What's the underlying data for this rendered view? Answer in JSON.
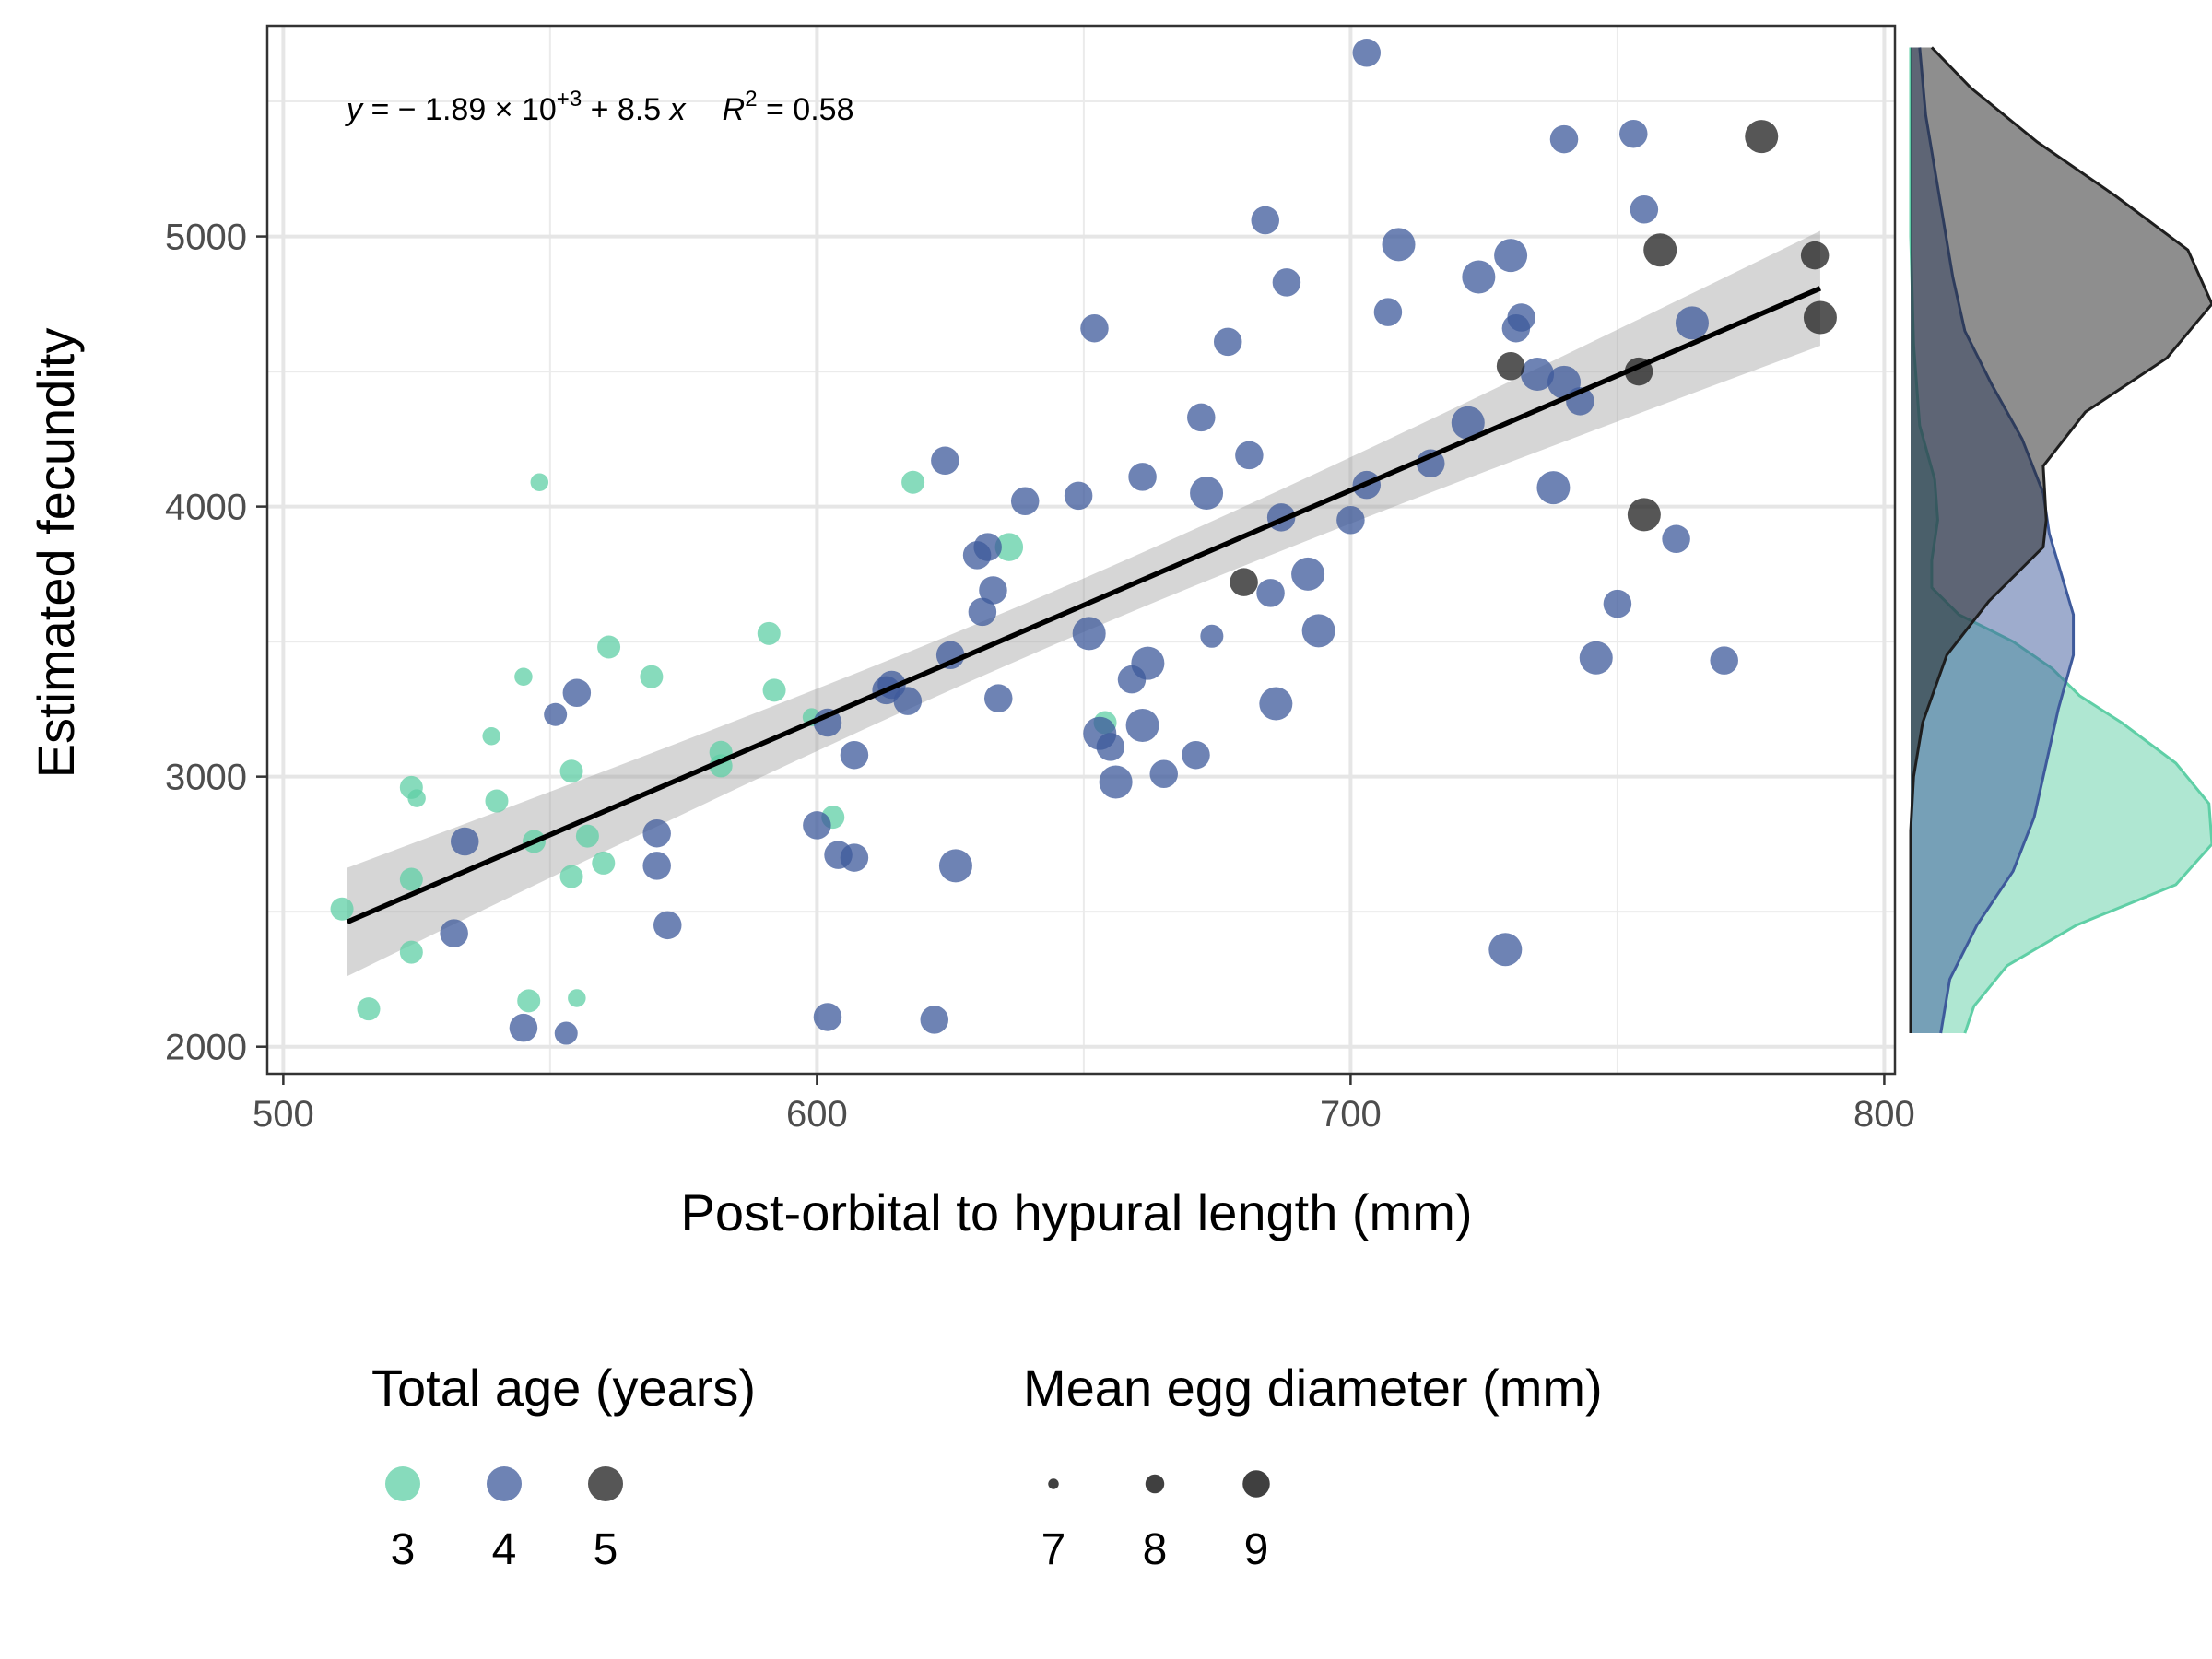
{
  "chart_data": {
    "type": "scatter",
    "xlabel": "Post-orbital to hypural length (mm)",
    "ylabel": "Estimated fecundity",
    "xlim": [
      497,
      802
    ],
    "ylim": [
      1900,
      5780
    ],
    "xticks": [
      500,
      600,
      700,
      800
    ],
    "yticks": [
      2000,
      3000,
      4000,
      5000
    ],
    "grid": true,
    "regression": {
      "intercept": -1890,
      "slope": 8.5,
      "r2": 0.58,
      "x_range": [
        512,
        788
      ],
      "equation_label": {
        "y": "y",
        "eq": " = − 1.89 × 10",
        "exp": "+3",
        "rest": " + 8.5 ",
        "x": "x",
        "r": "R",
        "r_exp": "2",
        "r_val": " = 0.58"
      }
    },
    "color_legend": {
      "title": "Total age (years)",
      "entries": [
        {
          "label": "3",
          "color": "#5fcfa6"
        },
        {
          "label": "4",
          "color": "#3e5a9b"
        },
        {
          "label": "5",
          "color": "#1e1e1e"
        }
      ]
    },
    "size_legend": {
      "title": "Mean egg diameter (mm)",
      "entries": [
        {
          "label": "7",
          "value": 7
        },
        {
          "label": "8",
          "value": 8
        },
        {
          "label": "9",
          "value": 9
        }
      ]
    },
    "series": [
      {
        "name": "3",
        "color": "#5fcfa6",
        "points": [
          [
            511,
            2510,
            8
          ],
          [
            516,
            2140,
            8
          ],
          [
            524,
            2960,
            8
          ],
          [
            525,
            2920,
            7.5
          ],
          [
            524,
            2620,
            8
          ],
          [
            524,
            2350,
            8
          ],
          [
            539,
            3150,
            7.5
          ],
          [
            540,
            2910,
            8
          ],
          [
            545,
            3370,
            7.5
          ],
          [
            546,
            2170,
            8
          ],
          [
            547,
            2760,
            8
          ],
          [
            548,
            4090,
            7.5
          ],
          [
            554,
            3020,
            8
          ],
          [
            554,
            2630,
            8
          ],
          [
            555,
            2180,
            7.5
          ],
          [
            557,
            2780,
            8
          ],
          [
            560,
            2680,
            8
          ],
          [
            561,
            3480,
            8
          ],
          [
            569,
            3370,
            8
          ],
          [
            582,
            3090,
            8
          ],
          [
            582,
            3040,
            8
          ],
          [
            591,
            3530,
            8
          ],
          [
            592,
            3320,
            8
          ],
          [
            599,
            3220,
            7.5
          ],
          [
            603,
            2850,
            8
          ],
          [
            618,
            4090,
            8
          ],
          [
            636,
            3850,
            8.5
          ],
          [
            654,
            3200,
            8
          ]
        ]
      },
      {
        "name": "4",
        "color": "#3e5a9b",
        "points": [
          [
            532,
            2420,
            8.5
          ],
          [
            534,
            2760,
            8.5
          ],
          [
            545,
            2070,
            8.5
          ],
          [
            551,
            3230,
            8
          ],
          [
            553,
            2050,
            8
          ],
          [
            555,
            3310,
            8.5
          ],
          [
            570,
            2790,
            8.5
          ],
          [
            570,
            2670,
            8.5
          ],
          [
            572,
            2450,
            8.5
          ],
          [
            600,
            2820,
            8.5
          ],
          [
            602,
            2110,
            8.5
          ],
          [
            602,
            3200,
            8.5
          ],
          [
            604,
            2710,
            8.5
          ],
          [
            607,
            2700,
            8.5
          ],
          [
            607,
            3080,
            8.5
          ],
          [
            613,
            3320,
            8.5
          ],
          [
            614,
            3340,
            8.5
          ],
          [
            617,
            3280,
            8.5
          ],
          [
            622,
            2100,
            8.5
          ],
          [
            624,
            4170,
            8.5
          ],
          [
            625,
            3450,
            8.5
          ],
          [
            626,
            2670,
            9
          ],
          [
            630,
            3820,
            8.5
          ],
          [
            631,
            3610,
            8.5
          ],
          [
            632,
            3850,
            8.5
          ],
          [
            633,
            3690,
            8.5
          ],
          [
            634,
            3290,
            8.5
          ],
          [
            639,
            4020,
            8.5
          ],
          [
            649,
            4040,
            8.5
          ],
          [
            651,
            3530,
            9
          ],
          [
            652,
            4660,
            8.5
          ],
          [
            653,
            3160,
            9
          ],
          [
            655,
            3110,
            8.5
          ],
          [
            656,
            2980,
            9
          ],
          [
            659,
            3360,
            8.5
          ],
          [
            661,
            3190,
            9
          ],
          [
            661,
            4110,
            8.5
          ],
          [
            662,
            3420,
            9
          ],
          [
            665,
            3010,
            8.5
          ],
          [
            671,
            3080,
            8.5
          ],
          [
            672,
            4330,
            8.5
          ],
          [
            673,
            4050,
            9
          ],
          [
            674,
            3520,
            8
          ],
          [
            677,
            4610,
            8.5
          ],
          [
            681,
            4190,
            8.5
          ],
          [
            684,
            5060,
            8.5
          ],
          [
            685,
            3680,
            8.5
          ],
          [
            686,
            3270,
            9
          ],
          [
            687,
            3960,
            8.5
          ],
          [
            688,
            4830,
            8.5
          ],
          [
            692,
            3750,
            9
          ],
          [
            694,
            3540,
            9
          ],
          [
            700,
            3950,
            8.5
          ],
          [
            703,
            5680,
            8.5
          ],
          [
            703,
            4080,
            8.5
          ],
          [
            707,
            4720,
            8.5
          ],
          [
            709,
            4970,
            9
          ],
          [
            715,
            4160,
            8.5
          ],
          [
            722,
            4310,
            9
          ],
          [
            724,
            4850,
            9
          ],
          [
            729,
            2360,
            9
          ],
          [
            730,
            4930,
            9
          ],
          [
            731,
            4660,
            8.5
          ],
          [
            732,
            4700,
            8.5
          ],
          [
            735,
            4490,
            9
          ],
          [
            738,
            4070,
            9
          ],
          [
            740,
            5360,
            8.5
          ],
          [
            740,
            4460,
            9
          ],
          [
            743,
            4390,
            8.5
          ],
          [
            746,
            3440,
            9
          ],
          [
            750,
            3640,
            8.5
          ],
          [
            753,
            5380,
            8.5
          ],
          [
            755,
            5100,
            8.5
          ],
          [
            761,
            3880,
            8.5
          ],
          [
            764,
            4680,
            9
          ],
          [
            770,
            3430,
            8.5
          ]
        ]
      },
      {
        "name": "5",
        "color": "#1e1e1e",
        "points": [
          [
            680,
            3720,
            8.5
          ],
          [
            730,
            4520,
            8.5
          ],
          [
            754,
            4500,
            8.5
          ],
          [
            755,
            3970,
            9
          ],
          [
            758,
            4950,
            9
          ],
          [
            777,
            5370,
            9
          ],
          [
            787,
            4930,
            8.5
          ],
          [
            788,
            4700,
            9
          ]
        ]
      }
    ],
    "marginal_density": {
      "axis": "y",
      "curves": [
        {
          "name": "3",
          "color": "#5fcfa6",
          "points": [
            [
              2050,
              0.18
            ],
            [
              2150,
              0.21
            ],
            [
              2300,
              0.32
            ],
            [
              2450,
              0.55
            ],
            [
              2600,
              0.88
            ],
            [
              2750,
              1.0
            ],
            [
              2900,
              0.99
            ],
            [
              3050,
              0.88
            ],
            [
              3200,
              0.7
            ],
            [
              3300,
              0.56
            ],
            [
              3400,
              0.47
            ],
            [
              3500,
              0.34
            ],
            [
              3600,
              0.16
            ],
            [
              3700,
              0.07
            ],
            [
              3800,
              0.07
            ],
            [
              3950,
              0.09
            ],
            [
              4100,
              0.08
            ],
            [
              4300,
              0.03
            ],
            [
              4600,
              0.01
            ],
            [
              5000,
              0.0
            ],
            [
              5700,
              0.0
            ]
          ]
        },
        {
          "name": "4",
          "color": "#3e5a9b",
          "points": [
            [
              2050,
              0.1
            ],
            [
              2250,
              0.13
            ],
            [
              2450,
              0.22
            ],
            [
              2650,
              0.34
            ],
            [
              2850,
              0.41
            ],
            [
              3050,
              0.45
            ],
            [
              3250,
              0.49
            ],
            [
              3450,
              0.54
            ],
            [
              3600,
              0.54
            ],
            [
              3750,
              0.5
            ],
            [
              3900,
              0.46
            ],
            [
              4050,
              0.44
            ],
            [
              4250,
              0.37
            ],
            [
              4450,
              0.27
            ],
            [
              4650,
              0.18
            ],
            [
              4850,
              0.14
            ],
            [
              5050,
              0.11
            ],
            [
              5250,
              0.08
            ],
            [
              5450,
              0.05
            ],
            [
              5700,
              0.03
            ]
          ]
        },
        {
          "name": "5",
          "color": "#1e1e1e",
          "points": [
            [
              2050,
              0.0
            ],
            [
              2800,
              0.0
            ],
            [
              3000,
              0.01
            ],
            [
              3200,
              0.04
            ],
            [
              3450,
              0.12
            ],
            [
              3650,
              0.26
            ],
            [
              3850,
              0.44
            ],
            [
              3950,
              0.45
            ],
            [
              4150,
              0.44
            ],
            [
              4350,
              0.58
            ],
            [
              4550,
              0.85
            ],
            [
              4750,
              1.0
            ],
            [
              4950,
              0.92
            ],
            [
              5150,
              0.68
            ],
            [
              5350,
              0.42
            ],
            [
              5550,
              0.2
            ],
            [
              5700,
              0.07
            ]
          ]
        }
      ]
    }
  }
}
